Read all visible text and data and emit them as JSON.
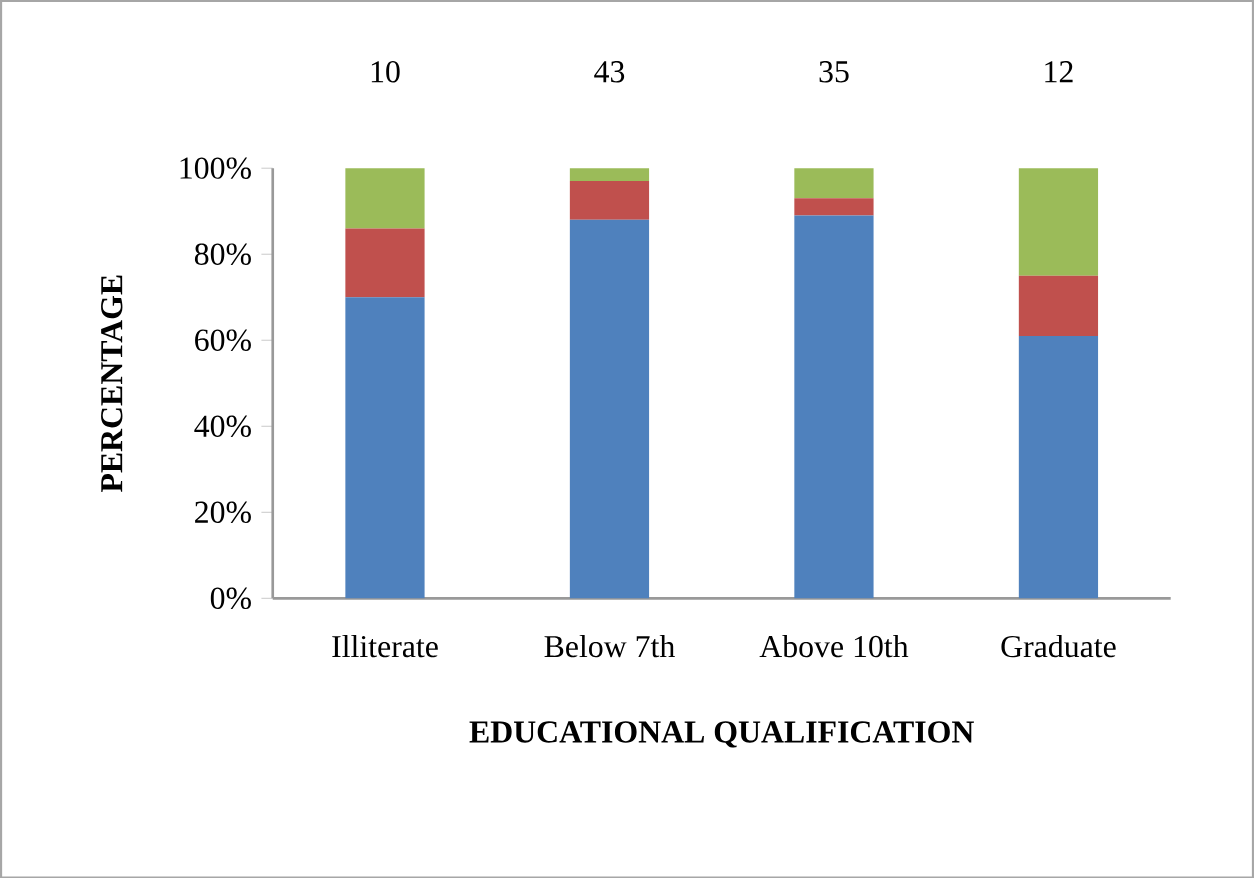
{
  "chart_data": {
    "type": "bar",
    "stacked": true,
    "xlabel": "EDUCATIONAL QUALIFICATION",
    "ylabel": "PERCENTAGE",
    "categories": [
      "Illiterate",
      "Below 7th",
      "Above 10th",
      "Graduate"
    ],
    "series": [
      {
        "color": "#4f81bd",
        "values": [
          70,
          88,
          89,
          61
        ]
      },
      {
        "color": "#c0504d",
        "values": [
          16,
          9,
          4,
          14
        ]
      },
      {
        "color": "#9bbb59",
        "values": [
          14,
          3,
          7,
          25
        ]
      }
    ],
    "ylim": [
      0,
      100
    ],
    "yticks": [
      {
        "value": 0,
        "label": "0%"
      },
      {
        "value": 20,
        "label": "20%"
      },
      {
        "value": 40,
        "label": "40%"
      },
      {
        "value": 60,
        "label": "60%"
      },
      {
        "value": 80,
        "label": "80%"
      },
      {
        "value": 100,
        "label": "100%"
      }
    ],
    "annotations": [
      "10",
      "43",
      "35",
      "12"
    ]
  }
}
